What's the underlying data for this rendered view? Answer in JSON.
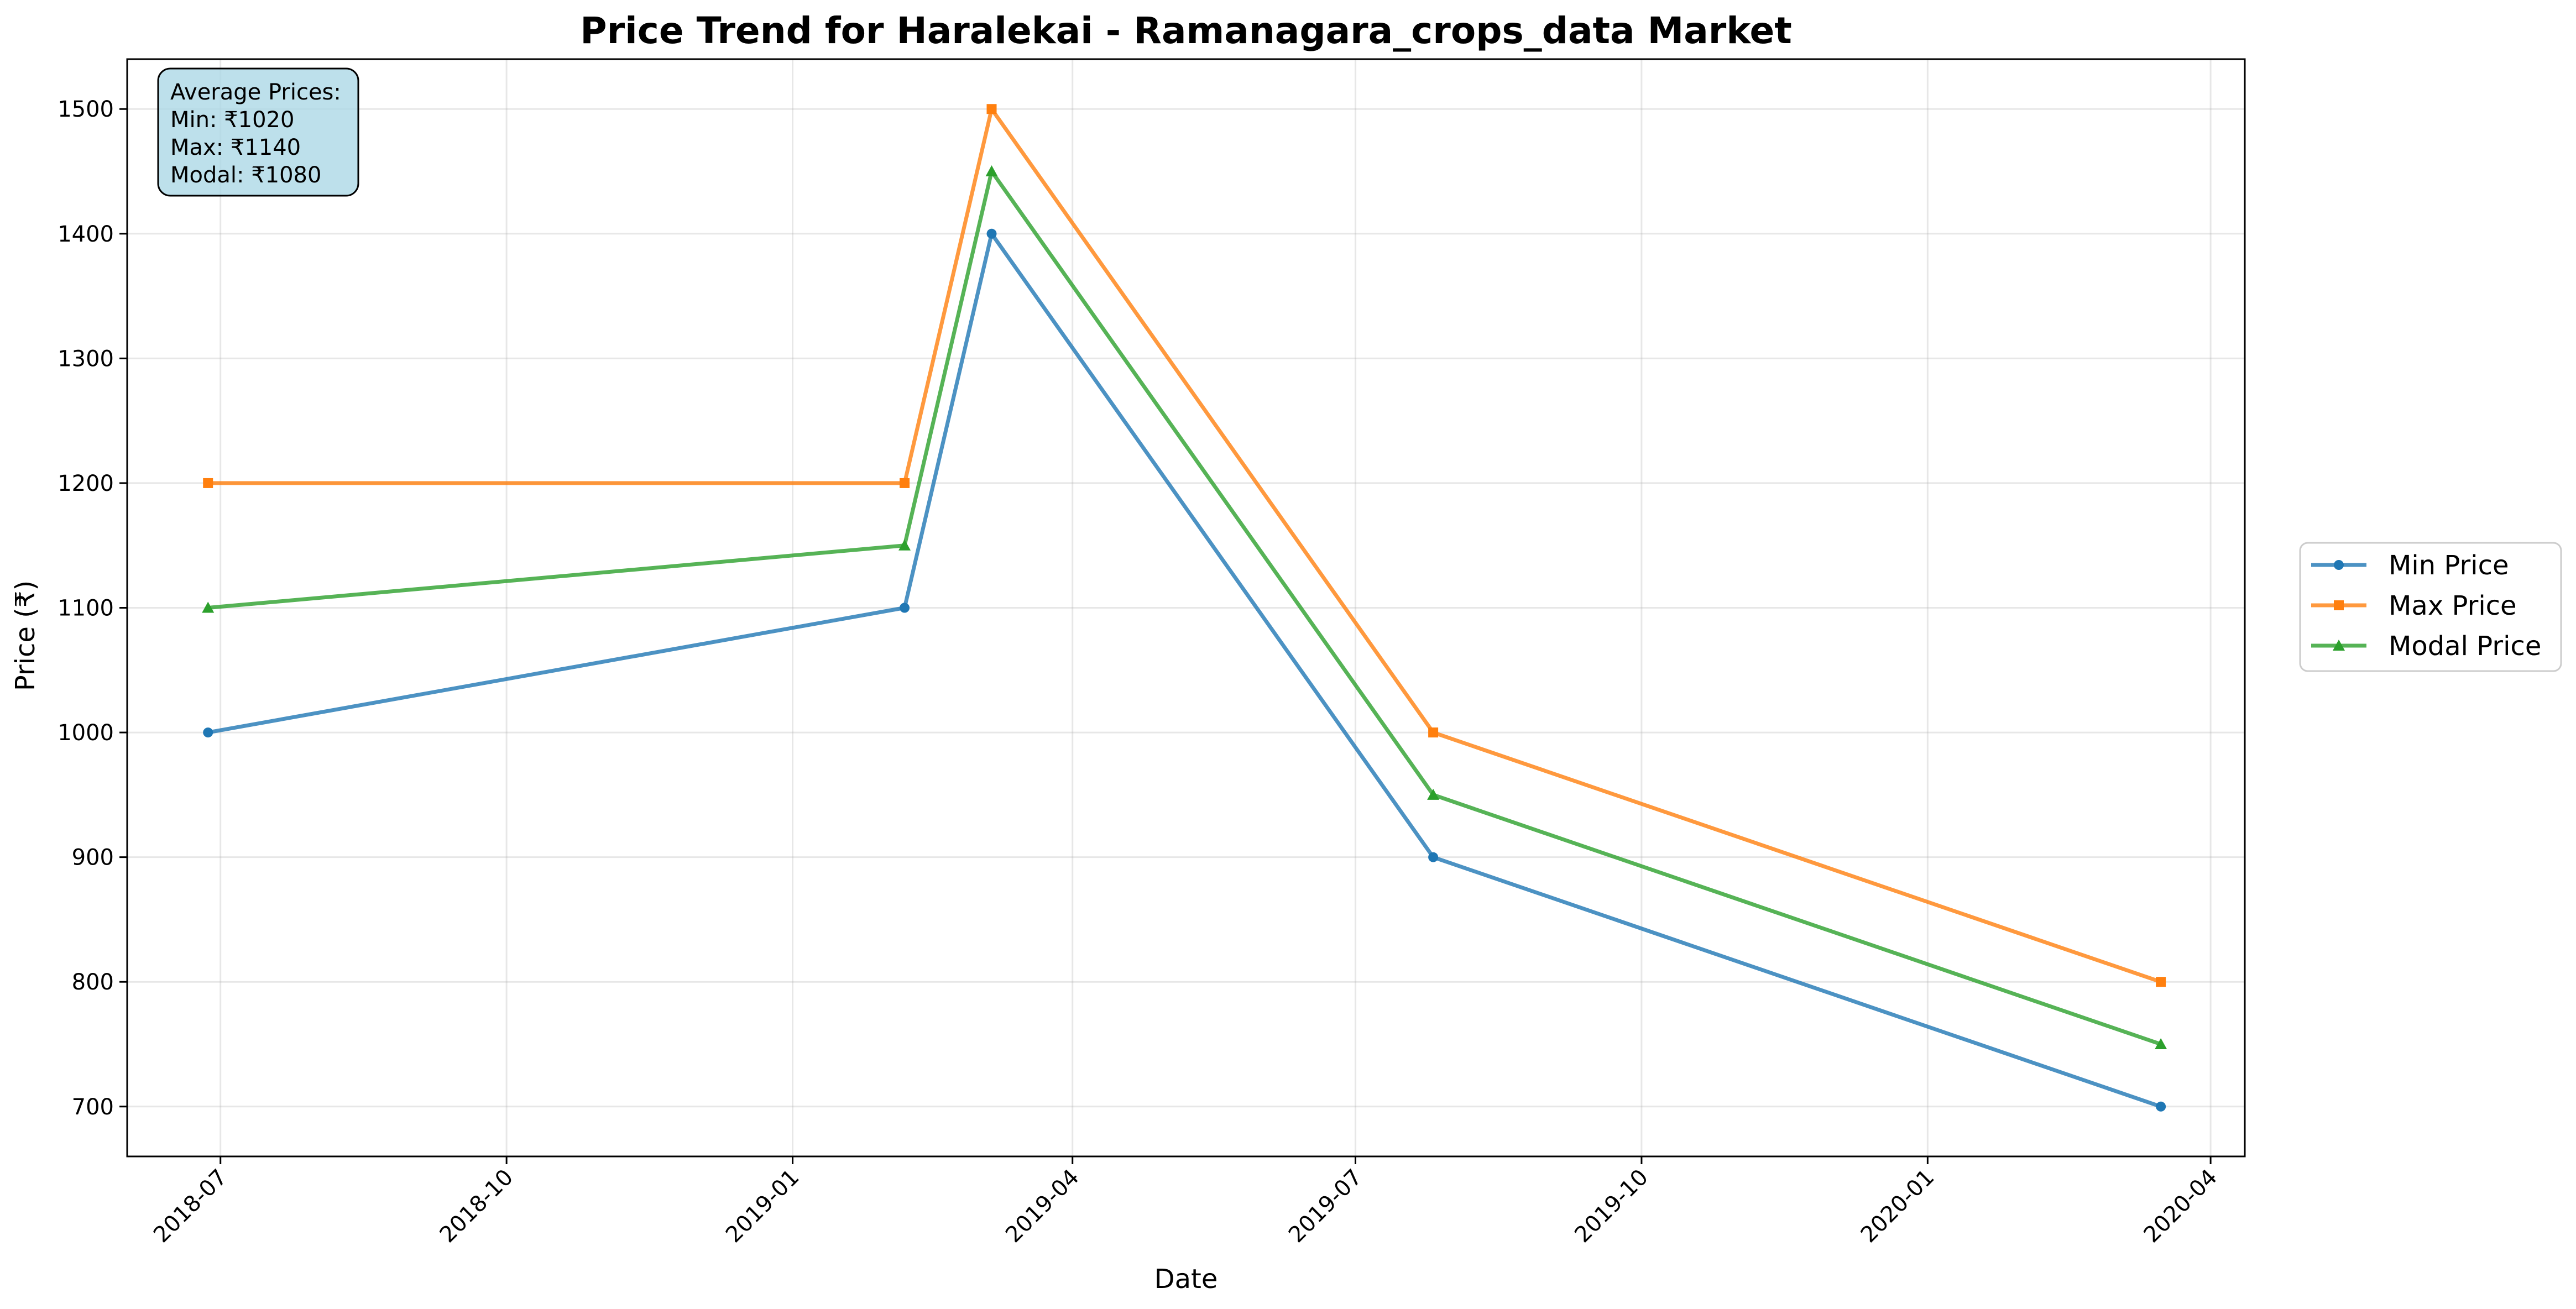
{
  "chart_data": {
    "type": "line",
    "title": "Price Trend for Haralekai - Ramanagara_crops_data Market",
    "xlabel": "Date",
    "ylabel": "Price (₹)",
    "x": [
      "2018-06-27",
      "2019-02-06",
      "2019-03-06",
      "2019-07-26",
      "2020-03-16"
    ],
    "xlim": [
      "2018-06-01",
      "2020-04-12"
    ],
    "xticks": [
      "2018-07-01",
      "2018-10-01",
      "2019-01-01",
      "2019-04-01",
      "2019-07-01",
      "2019-10-01",
      "2020-01-01",
      "2020-04-01"
    ],
    "xtick_labels": [
      "2018-07",
      "2018-10",
      "2019-01",
      "2019-04",
      "2019-07",
      "2019-10",
      "2020-01",
      "2020-04"
    ],
    "ylim": [
      660,
      1540
    ],
    "yticks": [
      700,
      800,
      900,
      1000,
      1100,
      1200,
      1300,
      1400,
      1500
    ],
    "grid": true,
    "legend_position": "center-right-outside",
    "series": [
      {
        "name": "Min Price",
        "values": [
          1000,
          1100,
          1400,
          900,
          700
        ],
        "color": "#1f77b4",
        "marker": "circle"
      },
      {
        "name": "Max Price",
        "values": [
          1200,
          1200,
          1500,
          1000,
          800
        ],
        "color": "#ff7f0e",
        "marker": "square"
      },
      {
        "name": "Modal Price",
        "values": [
          1100,
          1150,
          1450,
          950,
          750
        ],
        "color": "#2ca02c",
        "marker": "triangle"
      }
    ],
    "annotation": {
      "lines": [
        "Average Prices:",
        "Min: ₹1020",
        "Max: ₹1140",
        "Modal: ₹1080"
      ],
      "background": "#add8e6"
    }
  }
}
